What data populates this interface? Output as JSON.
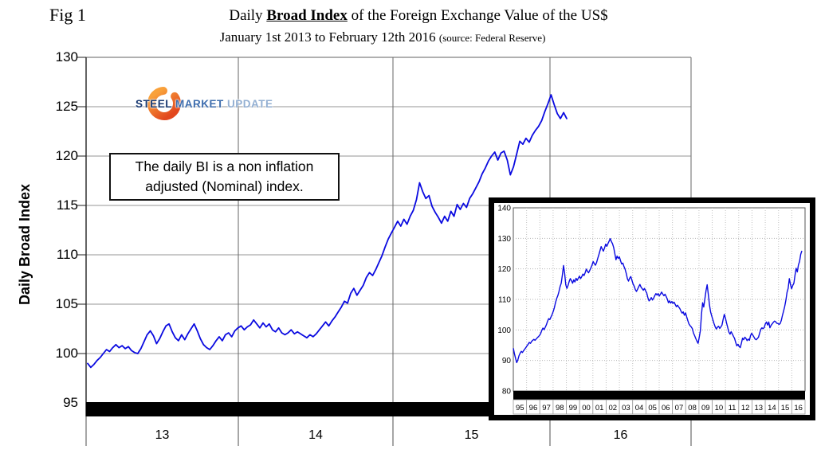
{
  "figure": {
    "fig_label": "Fig 1",
    "title_prefix": "Daily ",
    "title_emphasis": "Broad Index",
    "title_suffix": " of the Foreign Exchange Value of the US$",
    "subtitle": "January 1st 2013 to February 12th 2016 ",
    "subtitle_source": "(source: Federal Reserve)"
  },
  "annotation": {
    "line1": "The daily BI is a non inflation",
    "line2": "adjusted (Nominal) index."
  },
  "logo": {
    "word1": "STEEL",
    "word2": "MARKET",
    "word3": "UPDATE",
    "colors": {
      "word1": "#1a3a72",
      "word2": "#3f6eae",
      "word3": "#93afd2",
      "swoosh_outer": "#f9a13a",
      "swoosh_inner": "#e2471d"
    }
  },
  "colors": {
    "line_blue": "#0a0ae0",
    "grid_h": "#aaaaaa",
    "grid_v": "#666666",
    "border": "#808080",
    "baseline_bar": "#000000",
    "tick": "#888888"
  },
  "chart_data": [
    {
      "id": "main",
      "type": "line",
      "title": "Daily Broad Index of the Foreign Exchange Value of the US$",
      "subtitle": "January 1st 2013 to February 12th 2016 (source: Federal Reserve)",
      "xlabel": "",
      "ylabel": "Daily Broad Index",
      "x_start_label": "Jan 1 2013",
      "x_end_label": "Feb 12 2016",
      "ylim": [
        95,
        130
      ],
      "grid": true,
      "legend": "none",
      "y_ticks": [
        130,
        125,
        120,
        115,
        110,
        105,
        100,
        95
      ],
      "x_tick_labels": [
        "13",
        "14",
        "15",
        "16"
      ],
      "values": [
        99.0,
        98.6,
        98.9,
        99.3,
        99.6,
        100.0,
        100.4,
        100.2,
        100.6,
        100.9,
        100.6,
        100.8,
        100.5,
        100.7,
        100.3,
        100.1,
        100.0,
        100.5,
        101.2,
        101.9,
        102.3,
        101.8,
        101.0,
        101.5,
        102.2,
        102.8,
        103.0,
        102.2,
        101.6,
        101.3,
        101.9,
        101.4,
        102.0,
        102.5,
        103.0,
        102.3,
        101.5,
        100.9,
        100.6,
        100.4,
        100.8,
        101.3,
        101.7,
        101.3,
        101.9,
        102.1,
        101.7,
        102.3,
        102.6,
        102.8,
        102.4,
        102.7,
        102.9,
        103.4,
        103.0,
        102.6,
        103.1,
        102.7,
        103.0,
        102.4,
        102.2,
        102.6,
        102.1,
        101.9,
        102.1,
        102.4,
        102.0,
        102.2,
        102.0,
        101.8,
        101.6,
        101.9,
        101.7,
        102.0,
        102.4,
        102.8,
        103.2,
        102.8,
        103.3,
        103.7,
        104.2,
        104.7,
        105.3,
        105.1,
        106.1,
        106.6,
        105.9,
        106.4,
        106.9,
        107.7,
        108.2,
        107.9,
        108.5,
        109.2,
        109.9,
        110.8,
        111.6,
        112.2,
        112.8,
        113.4,
        112.9,
        113.6,
        113.1,
        113.9,
        114.5,
        115.6,
        117.3,
        116.4,
        115.7,
        116.0,
        114.9,
        114.3,
        113.8,
        113.2,
        113.9,
        113.4,
        114.4,
        113.9,
        115.1,
        114.6,
        115.2,
        114.8,
        115.7,
        116.2,
        116.8,
        117.4,
        118.2,
        118.8,
        119.5,
        120.0,
        120.4,
        119.6,
        120.3,
        120.5,
        119.6,
        118.1,
        118.9,
        120.2,
        121.5,
        121.2,
        121.8,
        121.4,
        122.1,
        122.6,
        123.0,
        123.6,
        124.5,
        125.3,
        126.2,
        125.2,
        124.3,
        123.8,
        124.4,
        123.8
      ]
    },
    {
      "id": "inset",
      "type": "line",
      "title": "",
      "xlabel": "",
      "ylabel": "",
      "x_start_label": "1995",
      "x_end_label": "Feb 2016",
      "ylim": [
        80,
        140
      ],
      "grid": true,
      "legend": "none",
      "y_ticks": [
        140,
        130,
        120,
        110,
        100,
        90,
        80
      ],
      "x_tick_labels": [
        "95",
        "96",
        "97",
        "98",
        "99",
        "00",
        "01",
        "02",
        "03",
        "04",
        "05",
        "06",
        "07",
        "08",
        "09",
        "10",
        "11",
        "12",
        "13",
        "14",
        "15",
        "16"
      ],
      "values": [
        94.0,
        92.2,
        90.6,
        89.3,
        90.2,
        91.6,
        92.4,
        93.0,
        92.6,
        93.2,
        93.7,
        94.2,
        94.8,
        95.3,
        95.9,
        95.6,
        96.2,
        96.6,
        96.9,
        96.6,
        97.0,
        97.4,
        97.8,
        98.2,
        98.8,
        99.9,
        100.6,
        100.1,
        100.9,
        101.7,
        102.8,
        103.7,
        103.4,
        104.2,
        105.0,
        106.1,
        107.3,
        108.9,
        110.3,
        111.2,
        112.5,
        114.2,
        115.3,
        117.9,
        121.1,
        118.5,
        114.8,
        113.6,
        114.6,
        115.9,
        116.8,
        116.1,
        115.3,
        116.4,
        115.7,
        116.9,
        116.2,
        117.0,
        117.6,
        116.8,
        117.4,
        118.3,
        117.8,
        118.7,
        119.9,
        119.2,
        118.7,
        119.5,
        120.3,
        121.2,
        122.4,
        121.7,
        121.2,
        122.1,
        123.4,
        124.6,
        125.9,
        127.3,
        126.5,
        125.8,
        126.9,
        128.1,
        127.4,
        128.3,
        129.1,
        129.9,
        128.9,
        128.2,
        127.0,
        125.1,
        123.0,
        124.2,
        123.4,
        123.9,
        122.7,
        121.6,
        121.9,
        120.8,
        119.9,
        118.5,
        116.8,
        116.0,
        116.9,
        117.5,
        116.3,
        115.1,
        114.3,
        113.2,
        112.6,
        113.4,
        114.2,
        114.9,
        114.0,
        113.5,
        113.0,
        113.6,
        112.8,
        112.1,
        110.6,
        109.5,
        109.9,
        110.6,
        109.8,
        110.4,
        111.2,
        111.9,
        111.4,
        111.9,
        111.1,
        111.7,
        112.4,
        111.8,
        111.2,
        111.7,
        111.0,
        110.1,
        108.9,
        109.5,
        108.8,
        109.3,
        108.7,
        109.1,
        108.3,
        107.6,
        108.1,
        107.5,
        107.0,
        106.2,
        105.5,
        105.9,
        104.8,
        105.6,
        104.3,
        103.1,
        102.0,
        101.4,
        101.0,
        100.4,
        98.9,
        98.1,
        97.2,
        96.3,
        95.6,
        97.5,
        99.8,
        105.2,
        108.9,
        107.5,
        110.3,
        112.9,
        114.8,
        111.5,
        108.2,
        105.9,
        104.5,
        103.3,
        102.1,
        101.0,
        100.3,
        100.9,
        101.2,
        100.5,
        101.0,
        101.6,
        103.5,
        105.1,
        103.9,
        102.2,
        100.8,
        99.3,
        98.6,
        99.4,
        98.7,
        97.9,
        97.2,
        95.9,
        94.8,
        95.3,
        94.6,
        94.2,
        95.7,
        97.3,
        96.8,
        97.6,
        97.2,
        96.5,
        97.0,
        96.6,
        98.1,
        98.9,
        98.3,
        97.7,
        97.0,
        96.8,
        97.2,
        97.6,
        99.0,
        100.2,
        100.7,
        100.4,
        100.8,
        102.0,
        102.6,
        101.6,
        102.6,
        100.7,
        101.5,
        102.0,
        102.5,
        102.9,
        102.7,
        102.2,
        102.1,
        101.8,
        102.1,
        103.1,
        104.8,
        106.2,
        107.7,
        109.8,
        112.3,
        113.6,
        116.8,
        114.9,
        113.5,
        114.6,
        115.3,
        117.9,
        120.2,
        119.0,
        121.3,
        122.4,
        124.8,
        125.9
      ]
    }
  ]
}
